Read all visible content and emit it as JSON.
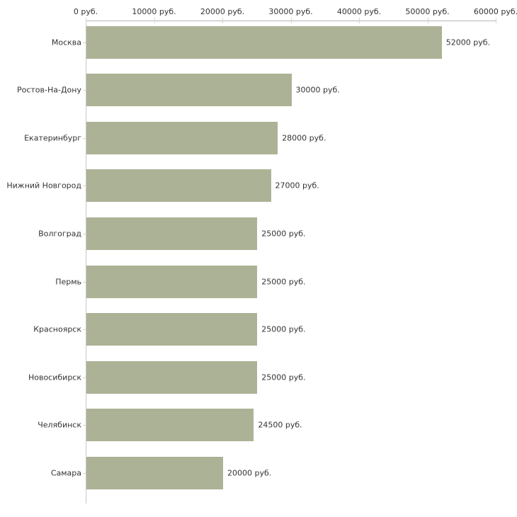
{
  "chart_data": {
    "type": "bar",
    "orientation": "horizontal",
    "title": "",
    "categories": [
      "Москва",
      "Ростов-На-Дону",
      "Екатеринбург",
      "Нижний Новгород",
      "Волгоград",
      "Пермь",
      "Красноярск",
      "Новосибирск",
      "Челябинск",
      "Самара"
    ],
    "values": [
      52000,
      30000,
      28000,
      27000,
      25000,
      25000,
      25000,
      25000,
      24500,
      20000
    ],
    "value_labels": [
      "52000 руб.",
      "30000 руб.",
      "28000 руб.",
      "27000 руб.",
      "25000 руб.",
      "25000 руб.",
      "25000 руб.",
      "25000 руб.",
      "24500 руб.",
      "20000 руб."
    ],
    "unit": "руб.",
    "x_axis": {
      "position": "top",
      "min": 0,
      "max": 60000,
      "ticks": [
        0,
        10000,
        20000,
        30000,
        40000,
        50000,
        60000
      ],
      "tick_labels": [
        "0 руб.",
        "10000 руб.",
        "20000 руб.",
        "30000 руб.",
        "40000 руб.",
        "50000 руб.",
        "60000 руб."
      ]
    },
    "grid": false,
    "legend": false,
    "colors": {
      "bar": "#acb295",
      "axis_line": "#b6b6b6",
      "y_axis_line": "#c8c8c8",
      "tick": "#d8d8c0",
      "text": "#333333",
      "background": "#ffffff"
    }
  }
}
